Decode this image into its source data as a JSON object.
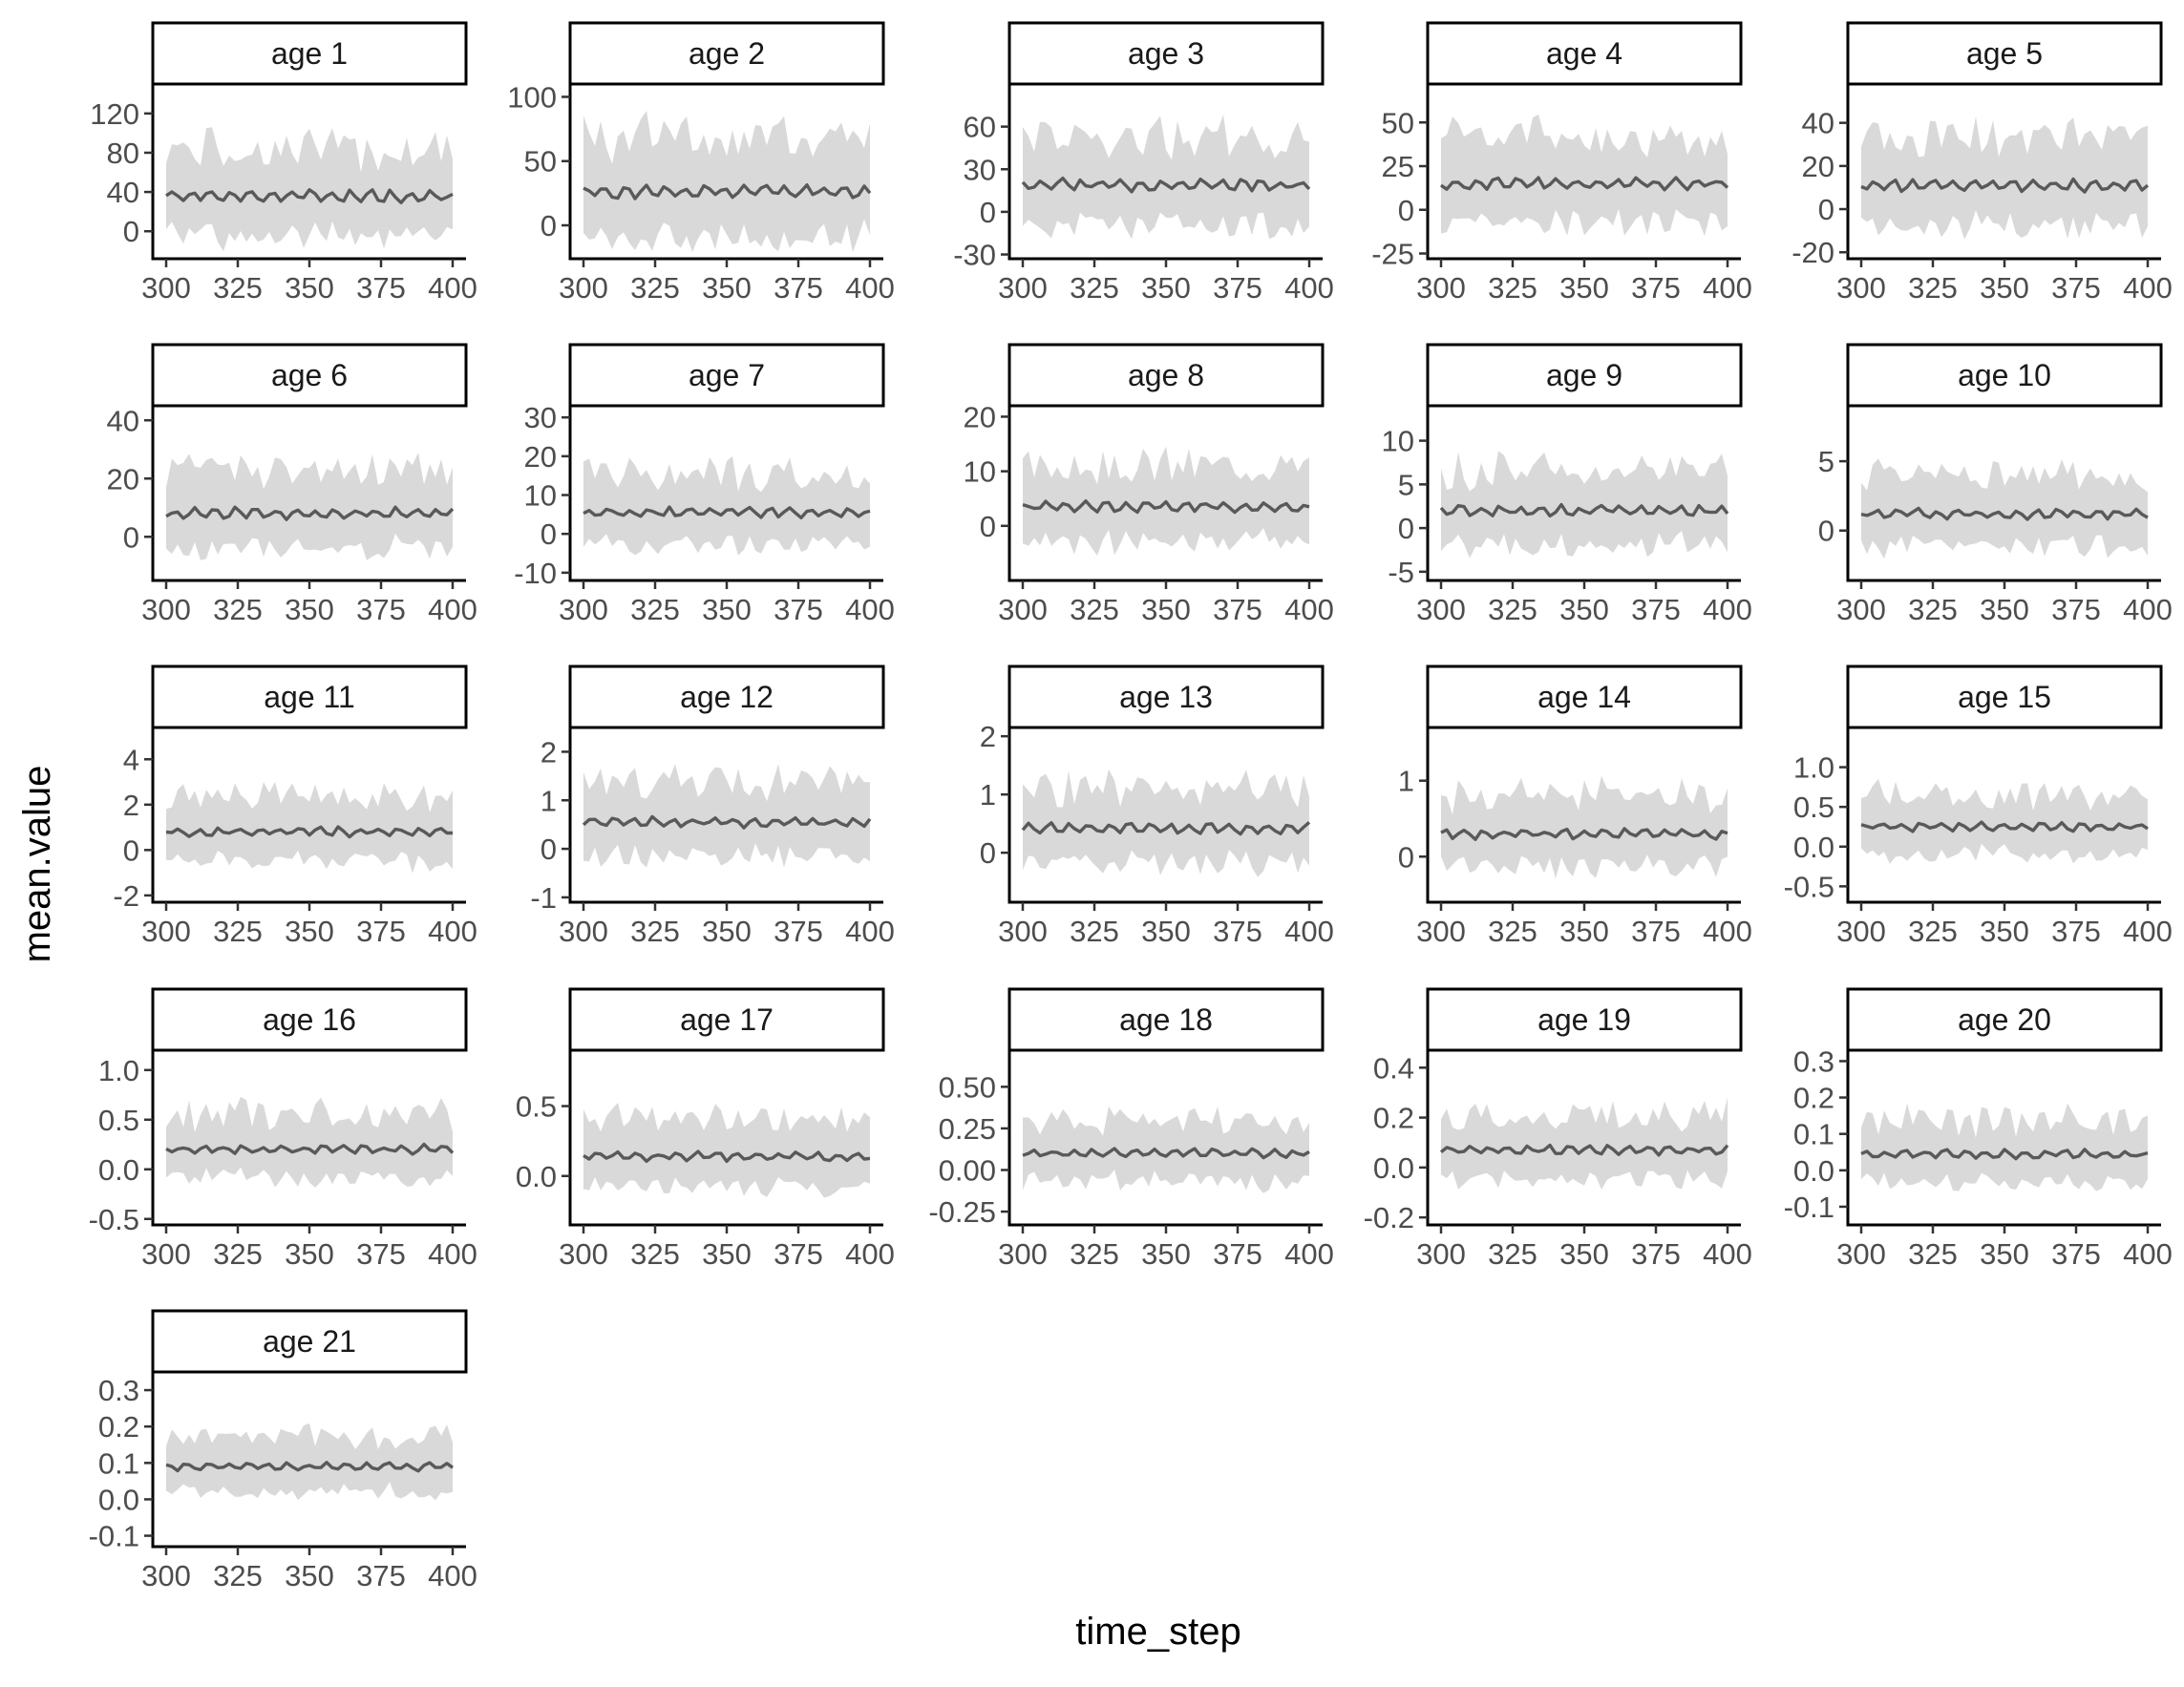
{
  "chart_data": {
    "type": "area",
    "xlabel": "time_step",
    "ylabel": "mean.value",
    "legend": "none",
    "grid": false,
    "x_range": [
      300,
      400
    ],
    "x_ticks": [
      300,
      325,
      350,
      375,
      400
    ],
    "panels": [
      {
        "title": "age 1",
        "ylim": [
          -28,
          150
        ],
        "yticks": [
          0,
          40,
          80,
          120
        ],
        "yticklabels": [
          "0",
          "40",
          "80",
          "120"
        ],
        "mean_level": 36,
        "ribbon_halfwidth": 52
      },
      {
        "title": "age 2",
        "ylim": [
          -26,
          110
        ],
        "yticks": [
          0,
          50,
          100
        ],
        "yticklabels": [
          "0",
          "50",
          "100"
        ],
        "mean_level": 26,
        "ribbon_halfwidth": 46
      },
      {
        "title": "age 3",
        "ylim": [
          -33,
          90
        ],
        "yticks": [
          -30,
          0,
          30,
          60
        ],
        "yticklabels": [
          "-30",
          "0",
          "30",
          "60"
        ],
        "mean_level": 19,
        "ribbon_halfwidth": 36
      },
      {
        "title": "age 4",
        "ylim": [
          -28,
          72
        ],
        "yticks": [
          -25,
          0,
          25,
          50
        ],
        "yticklabels": [
          "-25",
          "0",
          "25",
          "50"
        ],
        "mean_level": 15,
        "ribbon_halfwidth": 29
      },
      {
        "title": "age 5",
        "ylim": [
          -23,
          58
        ],
        "yticks": [
          -20,
          0,
          20,
          40
        ],
        "yticklabels": [
          "-20",
          "0",
          "20",
          "40"
        ],
        "mean_level": 11,
        "ribbon_halfwidth": 24
      },
      {
        "title": "age 6",
        "ylim": [
          -15,
          45
        ],
        "yticks": [
          0,
          20,
          40
        ],
        "yticklabels": [
          "0",
          "20",
          "40"
        ],
        "mean_level": 8,
        "ribbon_halfwidth": 16
      },
      {
        "title": "age 7",
        "ylim": [
          -12,
          33
        ],
        "yticks": [
          -10,
          0,
          10,
          20,
          30
        ],
        "yticklabels": [
          "-10",
          "0",
          "10",
          "20",
          "30"
        ],
        "mean_level": 5.5,
        "ribbon_halfwidth": 11
      },
      {
        "title": "age 8",
        "ylim": [
          -10,
          22
        ],
        "yticks": [
          0,
          10,
          20
        ],
        "yticklabels": [
          "0",
          "10",
          "20"
        ],
        "mean_level": 3.5,
        "ribbon_halfwidth": 8
      },
      {
        "title": "age 9",
        "ylim": [
          -6,
          14
        ],
        "yticks": [
          -5,
          0,
          5,
          10
        ],
        "yticklabels": [
          "-5",
          "0",
          "5",
          "10"
        ],
        "mean_level": 2,
        "ribbon_halfwidth": 5
      },
      {
        "title": "age 10",
        "ylim": [
          -3.6,
          9
        ],
        "yticks": [
          0,
          5
        ],
        "yticklabels": [
          "0",
          "5"
        ],
        "mean_level": 1.2,
        "ribbon_halfwidth": 3
      },
      {
        "title": "age 11",
        "ylim": [
          -2.3,
          5.4
        ],
        "yticks": [
          -2,
          0,
          2,
          4
        ],
        "yticklabels": [
          "-2",
          "0",
          "2",
          "4"
        ],
        "mean_level": 0.8,
        "ribbon_halfwidth": 1.7
      },
      {
        "title": "age 12",
        "ylim": [
          -1.1,
          2.5
        ],
        "yticks": [
          -1,
          0,
          1,
          2
        ],
        "yticklabels": [
          "-1",
          "0",
          "1",
          "2"
        ],
        "mean_level": 0.55,
        "ribbon_halfwidth": 0.9
      },
      {
        "title": "age 13",
        "ylim": [
          -0.85,
          2.15
        ],
        "yticks": [
          0,
          1,
          2
        ],
        "yticklabels": [
          "0",
          "1",
          "2"
        ],
        "mean_level": 0.42,
        "ribbon_halfwidth": 0.75
      },
      {
        "title": "age 14",
        "ylim": [
          -0.6,
          1.7
        ],
        "yticks": [
          0,
          1
        ],
        "yticklabels": [
          "0",
          "1"
        ],
        "mean_level": 0.3,
        "ribbon_halfwidth": 0.55
      },
      {
        "title": "age 15",
        "ylim": [
          -0.7,
          1.5
        ],
        "yticks": [
          -0.5,
          0,
          0.5,
          1
        ],
        "yticklabels": [
          "-0.5",
          "0.0",
          "0.5",
          "1.0"
        ],
        "mean_level": 0.25,
        "ribbon_halfwidth": 0.45
      },
      {
        "title": "age 16",
        "ylim": [
          -0.56,
          1.2
        ],
        "yticks": [
          -0.5,
          0,
          0.5,
          1
        ],
        "yticklabels": [
          "-0.5",
          "0.0",
          "0.5",
          "1.0"
        ],
        "mean_level": 0.2,
        "ribbon_halfwidth": 0.38
      },
      {
        "title": "age 17",
        "ylim": [
          -0.35,
          0.9
        ],
        "yticks": [
          0,
          0.5
        ],
        "yticklabels": [
          "0.0",
          "0.5"
        ],
        "mean_level": 0.14,
        "ribbon_halfwidth": 0.28
      },
      {
        "title": "age 18",
        "ylim": [
          -0.33,
          0.72
        ],
        "yticks": [
          -0.25,
          0,
          0.25,
          0.5
        ],
        "yticklabels": [
          "-0.25",
          "0.00",
          "0.25",
          "0.50"
        ],
        "mean_level": 0.1,
        "ribbon_halfwidth": 0.22
      },
      {
        "title": "age 19",
        "ylim": [
          -0.23,
          0.47
        ],
        "yticks": [
          -0.2,
          0,
          0.2,
          0.4
        ],
        "yticklabels": [
          "-0.2",
          "0.0",
          "0.2",
          "0.4"
        ],
        "mean_level": 0.07,
        "ribbon_halfwidth": 0.15
      },
      {
        "title": "age 20",
        "ylim": [
          -0.15,
          0.33
        ],
        "yticks": [
          -0.1,
          0,
          0.1,
          0.2,
          0.3
        ],
        "yticklabels": [
          "-0.1",
          "0.0",
          "0.1",
          "0.2",
          "0.3"
        ],
        "mean_level": 0.045,
        "ribbon_halfwidth": 0.1
      },
      {
        "title": "age 21",
        "ylim": [
          -0.13,
          0.35
        ],
        "yticks": [
          -0.1,
          0,
          0.1,
          0.2,
          0.3
        ],
        "yticklabels": [
          "-0.1",
          "0.0",
          "0.1",
          "0.2",
          "0.3"
        ],
        "mean_level": 0.09,
        "ribbon_halfwidth": 0.09
      }
    ]
  }
}
